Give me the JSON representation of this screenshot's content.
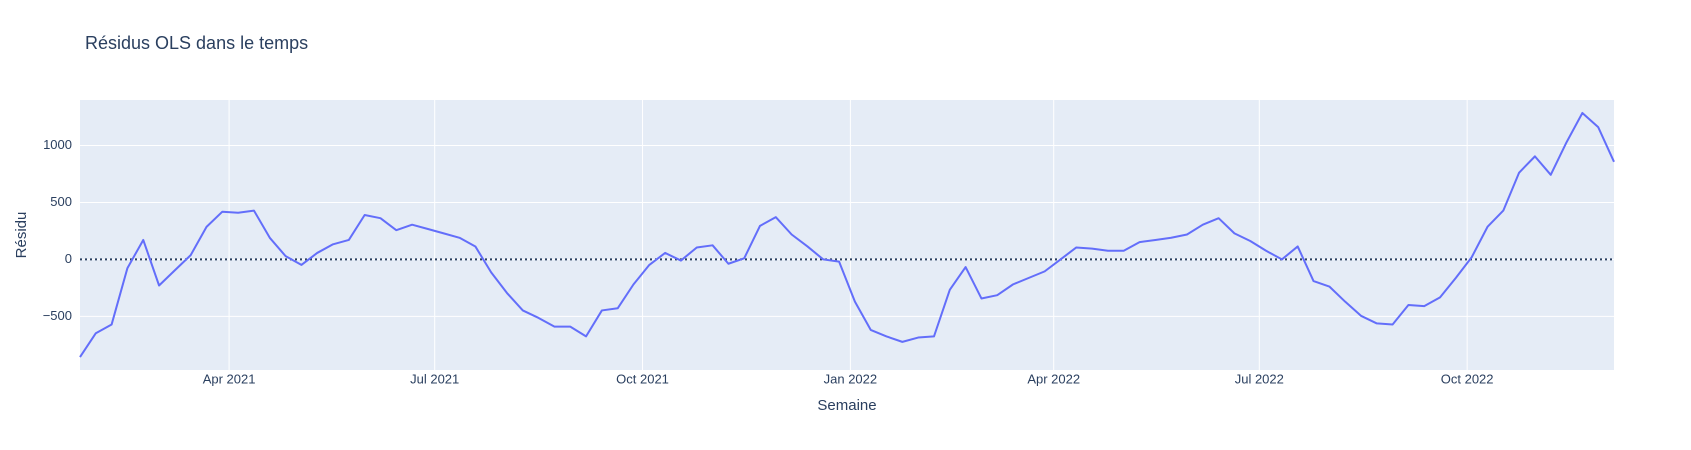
{
  "chart_data": {
    "type": "line",
    "title": "Résidus OLS dans le temps",
    "x_label": "Semaine",
    "y_label": "Résidu",
    "x": [
      "2021-01-25",
      "2021-02-01",
      "2021-02-08",
      "2021-02-15",
      "2021-02-22",
      "2021-03-01",
      "2021-03-08",
      "2021-03-15",
      "2021-03-22",
      "2021-03-29",
      "2021-04-05",
      "2021-04-12",
      "2021-04-19",
      "2021-04-26",
      "2021-05-03",
      "2021-05-10",
      "2021-05-17",
      "2021-05-24",
      "2021-05-31",
      "2021-06-07",
      "2021-06-14",
      "2021-06-21",
      "2021-06-28",
      "2021-07-05",
      "2021-07-12",
      "2021-07-19",
      "2021-07-26",
      "2021-08-02",
      "2021-08-09",
      "2021-08-16",
      "2021-08-23",
      "2021-08-30",
      "2021-09-06",
      "2021-09-13",
      "2021-09-20",
      "2021-09-27",
      "2021-10-04",
      "2021-10-11",
      "2021-10-18",
      "2021-10-25",
      "2021-11-01",
      "2021-11-08",
      "2021-11-15",
      "2021-11-22",
      "2021-11-29",
      "2021-12-06",
      "2021-12-13",
      "2021-12-20",
      "2021-12-27",
      "2022-01-03",
      "2022-01-10",
      "2022-01-17",
      "2022-01-24",
      "2022-01-31",
      "2022-02-07",
      "2022-02-14",
      "2022-02-21",
      "2022-02-28",
      "2022-03-07",
      "2022-03-14",
      "2022-03-21",
      "2022-03-28",
      "2022-04-04",
      "2022-04-11",
      "2022-04-18",
      "2022-04-25",
      "2022-05-02",
      "2022-05-09",
      "2022-05-16",
      "2022-05-23",
      "2022-05-30",
      "2022-06-06",
      "2022-06-13",
      "2022-06-20",
      "2022-06-27",
      "2022-07-04",
      "2022-07-11",
      "2022-07-18",
      "2022-07-25",
      "2022-08-01",
      "2022-08-08",
      "2022-08-15",
      "2022-08-22",
      "2022-08-29",
      "2022-09-05",
      "2022-09-12",
      "2022-09-19",
      "2022-09-26",
      "2022-10-03",
      "2022-10-10",
      "2022-10-17",
      "2022-10-24",
      "2022-10-31",
      "2022-11-07",
      "2022-11-14",
      "2022-11-21",
      "2022-11-28",
      "2022-12-05"
    ],
    "series": [
      {
        "color": "#636efa",
        "values": [
          -857,
          -648,
          -571,
          -76,
          171,
          -229,
          -95,
          38,
          286,
          419,
          410,
          429,
          190,
          29,
          -48,
          57,
          133,
          171,
          390,
          362,
          257,
          305,
          267,
          229,
          190,
          114,
          -114,
          -295,
          -448,
          -514,
          -590,
          -590,
          -676,
          -448,
          -429,
          -219,
          -48,
          57,
          -10,
          105,
          124,
          -38,
          10,
          295,
          371,
          219,
          114,
          0,
          -19,
          -371,
          -619,
          -676,
          -724,
          -686,
          -676,
          -267,
          -67,
          -343,
          -314,
          -219,
          -162,
          -105,
          0,
          105,
          95,
          76,
          76,
          152,
          171,
          190,
          219,
          305,
          362,
          229,
          162,
          76,
          0,
          114,
          -190,
          -238,
          -371,
          -495,
          -562,
          -571,
          -400,
          -410,
          -333,
          -162,
          19,
          286,
          429,
          762,
          905,
          743,
          1029,
          1286,
          1162,
          857
        ]
      }
    ],
    "xlim": [
      "2021-01-25",
      "2022-12-05"
    ],
    "xticks": [
      {
        "value": "2021-04-01",
        "label": "Apr 2021"
      },
      {
        "value": "2021-07-01",
        "label": "Jul 2021"
      },
      {
        "value": "2021-10-01",
        "label": "Oct 2021"
      },
      {
        "value": "2022-01-01",
        "label": "Jan 2022"
      },
      {
        "value": "2022-04-01",
        "label": "Apr 2022"
      },
      {
        "value": "2022-07-01",
        "label": "Jul 2022"
      },
      {
        "value": "2022-10-01",
        "label": "Oct 2022"
      }
    ],
    "ylim": [
      -971,
      1400
    ],
    "yticks": [
      {
        "value": -500,
        "label": "−500"
      },
      0,
      500,
      1000
    ],
    "hline": 0,
    "grid": true
  }
}
